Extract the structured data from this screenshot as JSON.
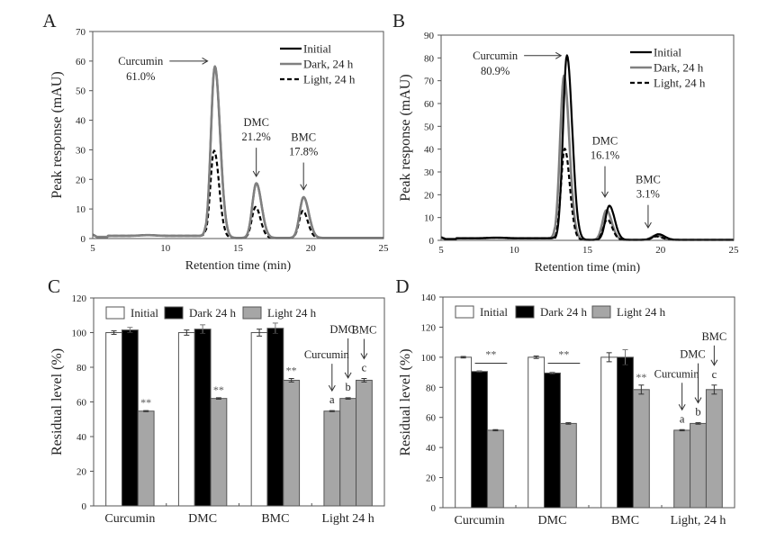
{
  "chart_data": [
    {
      "panel": "A",
      "type": "line",
      "xlabel": "Retention time (min)",
      "ylabel": "Peak response (mAU)",
      "xlim": [
        5,
        25
      ],
      "ylim": [
        0,
        70
      ],
      "xticks": [
        5,
        10,
        15,
        20,
        25
      ],
      "yticks": [
        0,
        10,
        20,
        30,
        40,
        50,
        60,
        70
      ],
      "legend": {
        "position": "top-right",
        "entries": [
          {
            "name": "Initial",
            "style": "solid-black"
          },
          {
            "name": "Dark, 24 h",
            "style": "solid-gray"
          },
          {
            "name": "Light, 24 h",
            "style": "dashed-black"
          }
        ]
      },
      "baseline": 0.8,
      "series": [
        {
          "name": "Initial",
          "color": "#000000",
          "dash": false,
          "peaks": [
            {
              "x": 13.4,
              "y": 58,
              "w": 0.38
            },
            {
              "x": 16.25,
              "y": 18.5,
              "w": 0.38
            },
            {
              "x": 19.5,
              "y": 13.8,
              "w": 0.38
            }
          ]
        },
        {
          "name": "Dark, 24 h",
          "color": "#808080",
          "dash": false,
          "peaks": [
            {
              "x": 13.4,
              "y": 58,
              "w": 0.38
            },
            {
              "x": 16.25,
              "y": 18.5,
              "w": 0.38
            },
            {
              "x": 19.5,
              "y": 13.8,
              "w": 0.38
            }
          ]
        },
        {
          "name": "Light, 24 h",
          "color": "#000000",
          "dash": true,
          "peaks": [
            {
              "x": 13.35,
              "y": 29.5,
              "w": 0.36
            },
            {
              "x": 16.2,
              "y": 10.5,
              "w": 0.36
            },
            {
              "x": 19.45,
              "y": 9.2,
              "w": 0.36
            }
          ]
        }
      ],
      "annotations": [
        {
          "label": "Curcumin",
          "value": "61.0%",
          "arrow": "right",
          "x": 8.3,
          "y": 60,
          "tx": 12.9,
          "ty": 58
        },
        {
          "label": "DMC",
          "value": "21.2%",
          "arrow": "down",
          "x": 16.25,
          "y": 38,
          "tx": 16.25,
          "ty": 21
        },
        {
          "label": "BMC",
          "value": "17.8%",
          "arrow": "down",
          "x": 19.5,
          "y": 33,
          "tx": 19.5,
          "ty": 16.5
        }
      ]
    },
    {
      "panel": "B",
      "type": "line",
      "xlabel": "Retention time (min)",
      "ylabel": "Peak response (mAU)",
      "xlim": [
        5,
        25
      ],
      "ylim": [
        0,
        90
      ],
      "xticks": [
        5,
        10,
        15,
        20,
        25
      ],
      "yticks": [
        0,
        10,
        20,
        30,
        40,
        50,
        60,
        70,
        80,
        90
      ],
      "legend": {
        "position": "top-right",
        "entries": [
          {
            "name": "Initial",
            "style": "solid-black"
          },
          {
            "name": "Dark, 24 h",
            "style": "solid-gray"
          },
          {
            "name": "Light, 24 h",
            "style": "dashed-black"
          }
        ]
      },
      "baseline": 0.8,
      "series": [
        {
          "name": "Initial",
          "color": "#000000",
          "dash": false,
          "peaks": [
            {
              "x": 13.6,
              "y": 80.9,
              "w": 0.38
            },
            {
              "x": 16.5,
              "y": 15,
              "w": 0.38
            },
            {
              "x": 19.85,
              "y": 2.5,
              "w": 0.45
            }
          ]
        },
        {
          "name": "Dark, 24 h",
          "color": "#808080",
          "dash": false,
          "peaks": [
            {
              "x": 13.4,
              "y": 72,
              "w": 0.38
            },
            {
              "x": 16.3,
              "y": 13,
              "w": 0.38
            },
            {
              "x": 19.7,
              "y": 2,
              "w": 0.45
            }
          ]
        },
        {
          "name": "Light, 24 h",
          "color": "#000000",
          "dash": true,
          "peaks": [
            {
              "x": 13.45,
              "y": 40,
              "w": 0.36
            },
            {
              "x": 16.35,
              "y": 9,
              "w": 0.36
            },
            {
              "x": 19.7,
              "y": 1.5,
              "w": 0.45
            }
          ]
        }
      ],
      "annotations": [
        {
          "label": "Curcumin",
          "value": "80.9%",
          "arrow": "right",
          "x": 8.7,
          "y": 81,
          "tx": 13.2,
          "ty": 81
        },
        {
          "label": "DMC",
          "value": "16.1%",
          "arrow": "down",
          "x": 16.2,
          "y": 42,
          "tx": 16.2,
          "ty": 19
        },
        {
          "label": "BMC",
          "value": "3.1%",
          "arrow": "down",
          "x": 19.15,
          "y": 25,
          "tx": 19.15,
          "ty": 5.5
        }
      ]
    },
    {
      "panel": "C",
      "type": "bar",
      "ylabel": "Residual level (%)",
      "ylim": [
        0,
        120
      ],
      "yticks": [
        0,
        20,
        40,
        60,
        80,
        100,
        120
      ],
      "categories": [
        "Curcumin",
        "DMC",
        "BMC",
        "Light 24 h"
      ],
      "legend": {
        "position": "top",
        "entries": [
          {
            "name": "Initial",
            "color": "#ffffff"
          },
          {
            "name": "Dark 24 h",
            "color": "#000000"
          },
          {
            "name": "Light 24 h",
            "color": "#a6a6a6"
          }
        ]
      },
      "groups": [
        {
          "category": "Curcumin",
          "bars": [
            {
              "series": "Initial",
              "value": 100,
              "err": 1
            },
            {
              "series": "Dark 24 h",
              "value": 101.5,
              "err": 1.5
            },
            {
              "series": "Light 24 h",
              "value": 54.7,
              "err": 0.3,
              "sig": "**"
            }
          ]
        },
        {
          "category": "DMC",
          "bars": [
            {
              "series": "Initial",
              "value": 100,
              "err": 1.5
            },
            {
              "series": "Dark 24 h",
              "value": 102,
              "err": 2.5
            },
            {
              "series": "Light 24 h",
              "value": 62,
              "err": 0.4,
              "sig": "**"
            }
          ]
        },
        {
          "category": "BMC",
          "bars": [
            {
              "series": "Initial",
              "value": 100,
              "err": 2
            },
            {
              "series": "Dark 24 h",
              "value": 102.5,
              "err": 3
            },
            {
              "series": "Light 24 h",
              "value": 72.5,
              "err": 1,
              "sig": "**"
            }
          ]
        },
        {
          "category": "Light 24 h",
          "bars": [
            {
              "series": "Curcumin",
              "value": 54.7,
              "err": 0.3,
              "letter": "a",
              "arrow_label": "Curcumin"
            },
            {
              "series": "DMC",
              "value": 62,
              "err": 0.4,
              "letter": "b",
              "arrow_label": "DMC"
            },
            {
              "series": "BMC",
              "value": 72.5,
              "err": 1,
              "letter": "c",
              "arrow_label": "BMC"
            }
          ]
        }
      ]
    },
    {
      "panel": "D",
      "type": "bar",
      "ylabel": "Residual level (%)",
      "ylim": [
        0,
        140
      ],
      "yticks": [
        0,
        20,
        40,
        60,
        80,
        100,
        120,
        140
      ],
      "categories": [
        "Curcumin",
        "DMC",
        "BMC",
        "Light, 24 h"
      ],
      "legend": {
        "position": "top",
        "entries": [
          {
            "name": "Initial",
            "color": "#ffffff"
          },
          {
            "name": "Dark 24 h",
            "color": "#000000"
          },
          {
            "name": "Light 24 h",
            "color": "#a6a6a6"
          }
        ]
      },
      "groups": [
        {
          "category": "Curcumin",
          "bars": [
            {
              "series": "Initial",
              "value": 100,
              "err": 0.5
            },
            {
              "series": "Dark 24 h",
              "value": 90.5,
              "err": 0.5
            },
            {
              "series": "Light 24 h",
              "value": 51.5,
              "err": 0.4
            }
          ],
          "bracket_sig": "**"
        },
        {
          "category": "DMC",
          "bars": [
            {
              "series": "Initial",
              "value": 100,
              "err": 0.8
            },
            {
              "series": "Dark 24 h",
              "value": 89.5,
              "err": 0.6
            },
            {
              "series": "Light 24 h",
              "value": 56,
              "err": 0.5
            }
          ],
          "bracket_sig": "**"
        },
        {
          "category": "BMC",
          "bars": [
            {
              "series": "Initial",
              "value": 100,
              "err": 3
            },
            {
              "series": "Dark 24 h",
              "value": 100,
              "err": 5
            },
            {
              "series": "Light 24 h",
              "value": 78.5,
              "err": 3,
              "sig": "**"
            }
          ]
        },
        {
          "category": "Light, 24 h",
          "bars": [
            {
              "series": "Curcumin",
              "value": 51.5,
              "err": 0.4,
              "letter": "a",
              "arrow_label": "Curcumin"
            },
            {
              "series": "DMC",
              "value": 56,
              "err": 0.5,
              "letter": "b",
              "arrow_label": "DMC"
            },
            {
              "series": "BMC",
              "value": 78.5,
              "err": 3,
              "letter": "c",
              "arrow_label": "BMC"
            }
          ]
        }
      ]
    }
  ]
}
